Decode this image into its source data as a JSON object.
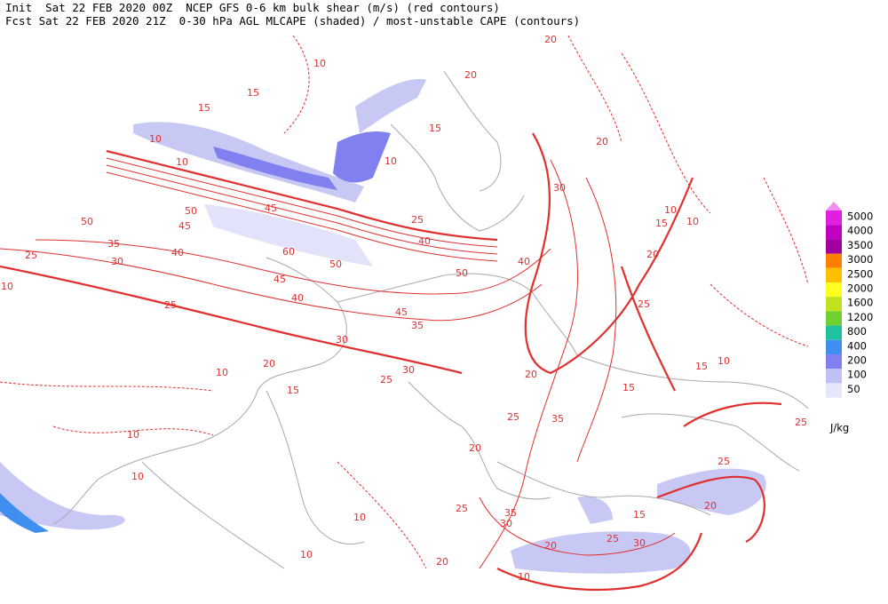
{
  "header": {
    "line1": "Init  Sat 22 FEB 2020 00Z  NCEP GFS 0-6 km bulk shear (m/s) (red contours)",
    "line2": "Fcst Sat 22 FEB 2020 21Z  0-30 hPa AGL MLCAPE (shaded) / most-unstable CAPE (contours)"
  },
  "legend": {
    "unit": "J/kg",
    "levels": [
      5000,
      4000,
      3500,
      3000,
      2500,
      2000,
      1600,
      1200,
      800,
      400,
      200,
      100,
      50
    ],
    "colors": [
      "#e020e0",
      "#c000c0",
      "#a000a0",
      "#ff8000",
      "#ffc000",
      "#ffff20",
      "#c0e020",
      "#70d030",
      "#20c0a0",
      "#3f8ff0",
      "#8080f0",
      "#c0c0f4",
      "#e6e6fa"
    ],
    "over_color": "#f090f0"
  },
  "contour_labels": [
    15,
    15,
    10,
    10,
    10,
    50,
    45,
    50,
    45,
    35,
    30,
    25,
    40,
    60,
    50,
    45,
    40,
    25,
    10,
    30,
    20,
    10,
    15,
    35,
    45,
    30,
    25,
    50,
    40,
    30,
    20,
    20,
    20,
    15,
    10,
    20,
    25,
    20,
    15,
    15,
    10,
    35,
    25,
    20,
    20,
    30,
    35,
    25,
    10,
    10,
    10,
    10,
    10,
    20,
    25,
    30,
    15,
    20,
    25,
    25,
    10,
    15,
    10,
    25,
    40
  ]
}
